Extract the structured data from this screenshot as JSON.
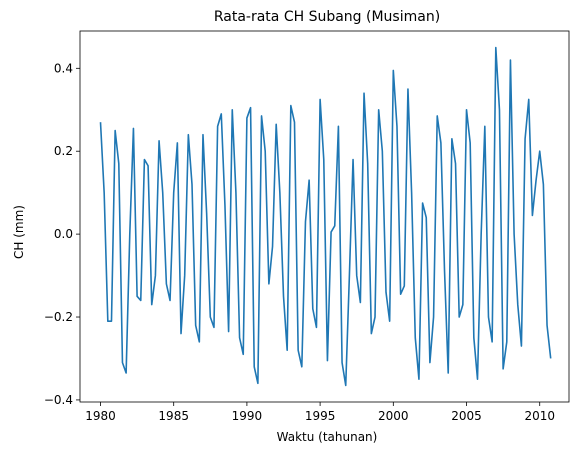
{
  "chart_data": {
    "type": "line",
    "title": "Rata-rata CH Subang (Musiman)",
    "xlabel": "Waktu (tahunan)",
    "ylabel": "CH (mm)",
    "xlim": [
      1978.6,
      2012.0
    ],
    "ylim": [
      -0.405,
      0.49
    ],
    "xticks": [
      1980,
      1985,
      1990,
      1995,
      2000,
      2005,
      2010
    ],
    "xtick_labels": [
      "1980",
      "1985",
      "1990",
      "1995",
      "2000",
      "2005",
      "2010"
    ],
    "yticks": [
      -0.4,
      -0.2,
      0.0,
      0.2,
      0.4
    ],
    "ytick_labels": [
      "−0.4",
      "−0.2",
      "0.0",
      "0.2",
      "0.4"
    ],
    "grid": false,
    "line_color": "#1f77b4",
    "series": [
      {
        "x": [
          1980.0,
          1980.25,
          1980.5,
          1980.75,
          1981.0,
          1981.25,
          1981.5,
          1981.75,
          1982.0,
          1982.25,
          1982.5,
          1982.75,
          1983.0,
          1983.25,
          1983.5,
          1983.75,
          1984.0,
          1984.25,
          1984.5,
          1984.75,
          1985.0,
          1985.25,
          1985.5,
          1985.75,
          1986.0,
          1986.25,
          1986.5,
          1986.75,
          1987.0,
          1987.25,
          1987.5,
          1987.75,
          1988.0,
          1988.25,
          1988.5,
          1988.75,
          1989.0,
          1989.25,
          1989.5,
          1989.75,
          1990.0,
          1990.25,
          1990.5,
          1990.75,
          1991.0,
          1991.25,
          1991.5,
          1991.75,
          1992.0,
          1992.25,
          1992.5,
          1992.75,
          1993.0,
          1993.25,
          1993.5,
          1993.75,
          1994.0,
          1994.25,
          1994.5,
          1994.75,
          1995.0,
          1995.25,
          1995.5,
          1995.75,
          1996.0,
          1996.25,
          1996.5,
          1996.75,
          1997.0,
          1997.25,
          1997.5,
          1997.75,
          1998.0,
          1998.25,
          1998.5,
          1998.75,
          1999.0,
          1999.25,
          1999.5,
          1999.75,
          2000.0,
          2000.25,
          2000.5,
          2000.75,
          2001.0,
          2001.25,
          2001.5,
          2001.75,
          2002.0,
          2002.25,
          2002.5,
          2002.75,
          2003.0,
          2003.25,
          2003.5,
          2003.75,
          2004.0,
          2004.25,
          2004.5,
          2004.75,
          2005.0,
          2005.25,
          2005.5,
          2005.75,
          2006.0,
          2006.25,
          2006.5,
          2006.75,
          2007.0,
          2007.25,
          2007.5,
          2007.75,
          2008.0,
          2008.25,
          2008.5,
          2008.75,
          2009.0,
          2009.25,
          2009.5,
          2009.75,
          2010.0,
          2010.25,
          2010.5,
          2010.75
        ],
        "y": [
          0.27,
          0.1,
          -0.21,
          -0.21,
          0.25,
          0.17,
          -0.31,
          -0.335,
          0.0,
          0.255,
          -0.15,
          -0.16,
          0.18,
          0.165,
          -0.17,
          -0.1,
          0.225,
          0.1,
          -0.12,
          -0.16,
          0.1,
          0.22,
          -0.24,
          -0.1,
          0.24,
          0.12,
          -0.22,
          -0.26,
          0.24,
          0.05,
          -0.2,
          -0.225,
          0.26,
          0.29,
          0.07,
          -0.235,
          0.3,
          0.1,
          -0.25,
          -0.29,
          0.28,
          0.305,
          -0.32,
          -0.36,
          0.285,
          0.2,
          -0.12,
          -0.03,
          0.265,
          0.1,
          -0.15,
          -0.28,
          0.31,
          0.27,
          -0.28,
          -0.32,
          0.03,
          0.13,
          -0.18,
          -0.225,
          0.325,
          0.18,
          -0.305,
          0.005,
          0.02,
          0.26,
          -0.31,
          -0.365,
          -0.1,
          0.18,
          -0.1,
          -0.165,
          0.34,
          0.17,
          -0.24,
          -0.2,
          0.3,
          0.2,
          -0.14,
          -0.21,
          0.395,
          0.26,
          -0.145,
          -0.125,
          0.35,
          0.1,
          -0.25,
          -0.35,
          0.075,
          0.04,
          -0.31,
          -0.2,
          0.285,
          0.22,
          -0.09,
          -0.335,
          0.23,
          0.17,
          -0.2,
          -0.17,
          0.3,
          0.22,
          -0.25,
          -0.35,
          0.0,
          0.26,
          -0.2,
          -0.26,
          0.45,
          0.3,
          -0.325,
          -0.26,
          0.42,
          0.0,
          -0.17,
          -0.27,
          0.23,
          0.325,
          0.045,
          0.13,
          0.2,
          0.12,
          -0.22,
          -0.3
        ]
      }
    ]
  }
}
